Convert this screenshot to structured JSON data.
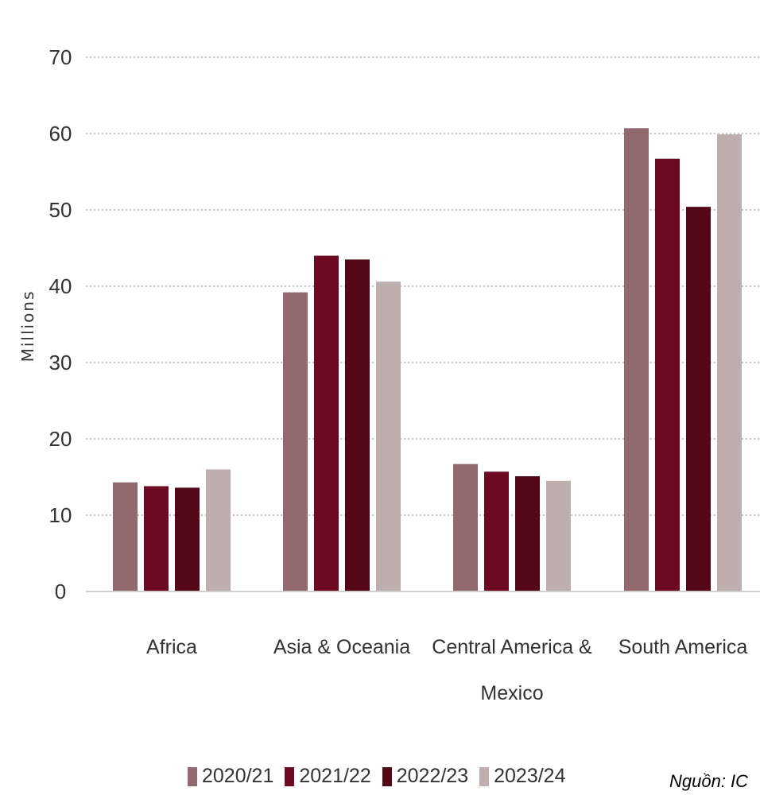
{
  "chart_data": {
    "type": "bar",
    "categories": [
      [
        "Africa"
      ],
      [
        "Asia & Oceania"
      ],
      [
        "Central America &",
        "Mexico"
      ],
      [
        "South America"
      ]
    ],
    "series": [
      {
        "name": "2020/21",
        "color": "#926a6d",
        "values": [
          14.3,
          39.2,
          16.7,
          60.7
        ]
      },
      {
        "name": "2021/22",
        "color": "#6c0a22",
        "values": [
          13.8,
          44.0,
          15.7,
          56.7
        ]
      },
      {
        "name": "2022/23",
        "color": "#540717",
        "values": [
          13.6,
          43.5,
          15.1,
          50.4
        ]
      },
      {
        "name": "2023/24",
        "color": "#bfaeae",
        "values": [
          16.0,
          40.6,
          14.5,
          59.9
        ]
      }
    ],
    "yticks": [
      "0",
      "10",
      "20",
      "30",
      "40",
      "50",
      "60",
      "70"
    ],
    "ylim": [
      0,
      70
    ],
    "ylabel": "Millions",
    "grid": "dotted horizontal",
    "legend_position": "bottom"
  },
  "source": "Nguồn: IC"
}
